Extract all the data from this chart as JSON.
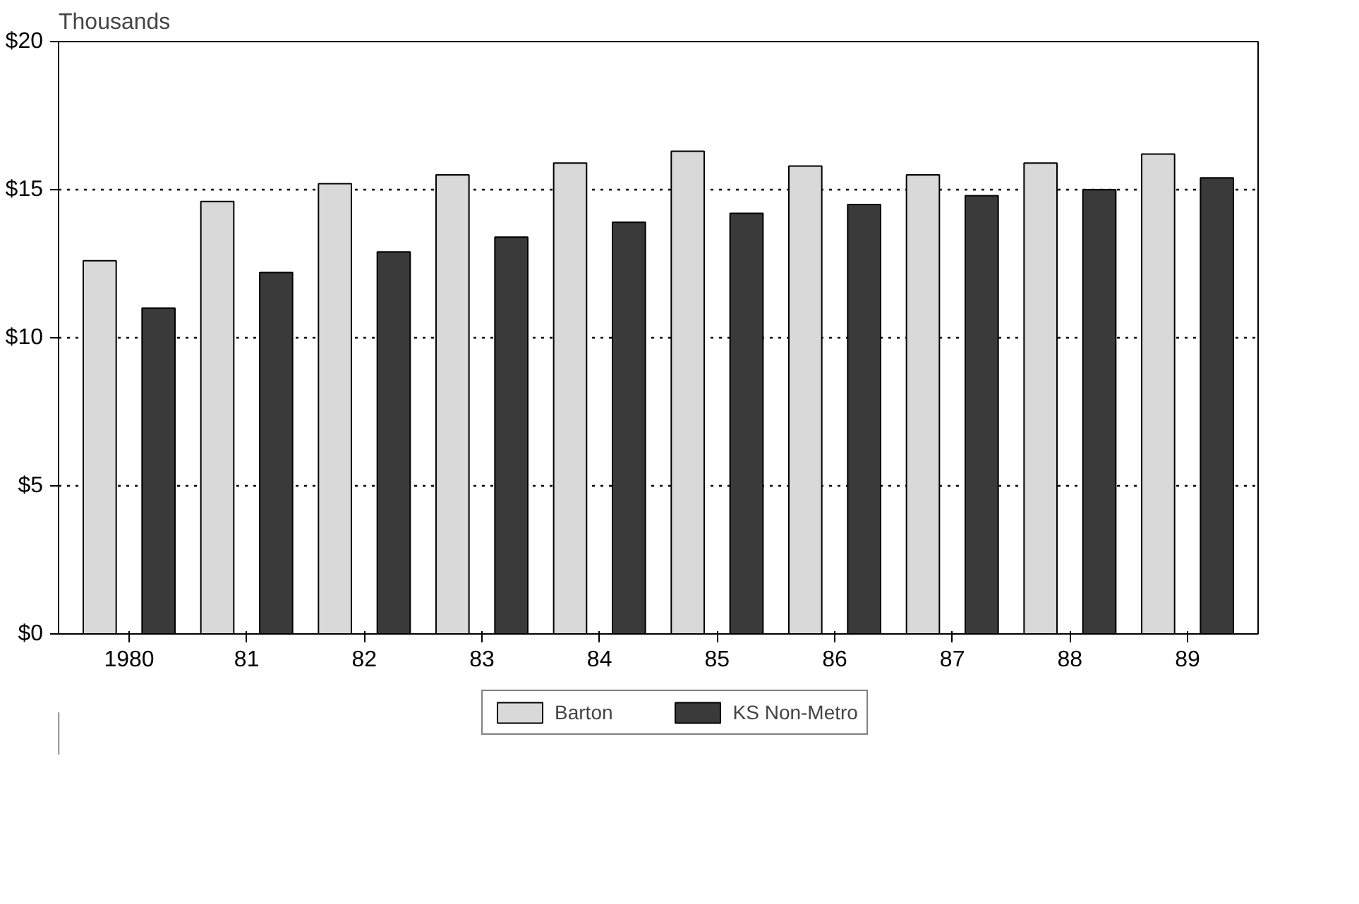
{
  "chart_data": {
    "type": "bar",
    "ylabel": "Thousands",
    "categories": [
      "1980",
      "81",
      "82",
      "83",
      "84",
      "85",
      "86",
      "87",
      "88",
      "89"
    ],
    "series": [
      {
        "name": "Barton",
        "color": "#d9d9d9",
        "values": [
          12.6,
          14.6,
          15.2,
          15.5,
          15.9,
          16.3,
          15.8,
          15.5,
          15.9,
          16.2
        ]
      },
      {
        "name": "KS Non-Metro",
        "color": "#3a3a3a",
        "values": [
          11.0,
          12.2,
          12.9,
          13.4,
          13.9,
          14.2,
          14.5,
          14.8,
          15.0,
          15.4
        ]
      }
    ],
    "ylim": [
      0,
      20
    ],
    "yticks": [
      {
        "value": 0,
        "label": "$0"
      },
      {
        "value": 5,
        "label": "$5"
      },
      {
        "value": 10,
        "label": "$10"
      },
      {
        "value": 15,
        "label": "$15"
      },
      {
        "value": 20,
        "label": "$20"
      }
    ],
    "grid": "y",
    "legend": "bottom"
  }
}
